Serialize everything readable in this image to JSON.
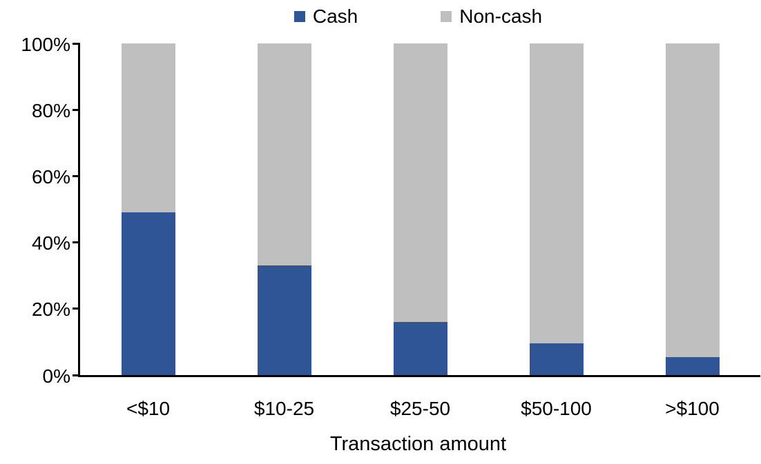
{
  "chart_data": {
    "type": "bar",
    "variant": "stacked-100-percent",
    "title": "",
    "xlabel": "Transaction amount",
    "ylabel": "",
    "categories": [
      "<$10",
      "$10-25",
      "$25-50",
      "$50-100",
      ">$100"
    ],
    "series": [
      {
        "name": "Cash",
        "color": "#2F5597",
        "values": [
          49,
          33,
          16,
          9.5,
          5.5
        ]
      },
      {
        "name": "Non-cash",
        "color": "#BFBFBF",
        "values": [
          51,
          67,
          84,
          90.5,
          94.5
        ]
      }
    ],
    "y_ticks": [
      "0%",
      "20%",
      "40%",
      "60%",
      "80%",
      "100%"
    ],
    "ylim": [
      0,
      100
    ],
    "legend_position": "top",
    "grid": false,
    "axis_color": "#000000",
    "text_color": "#000000",
    "background_color": "#FFFFFF"
  }
}
